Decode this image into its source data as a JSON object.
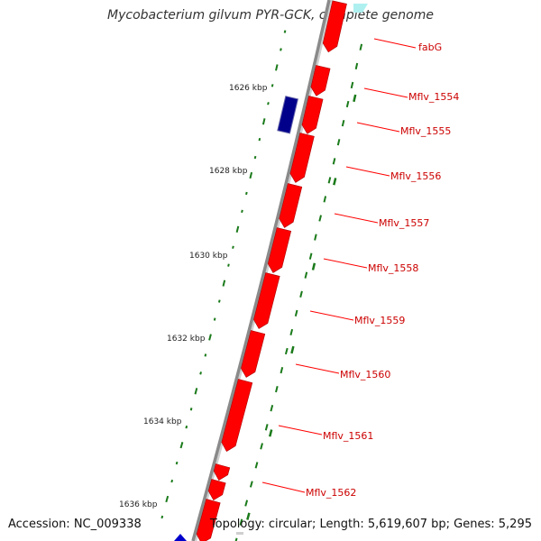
{
  "title": "Mycobacterium gilvum PYR-GCK, complete genome",
  "accession_text": "Accession: NC_009338",
  "topology_text": "Topology: circular; Length: 5,619,607 bp; Genes: 5,295",
  "colors": {
    "backbone": "#8a8a8a",
    "forward_gene": "#ff0000",
    "reverse_gene": "#0000cc",
    "highlight_gene": "#00008b",
    "rna_gene": "#aef0f0",
    "gc_tick": "#1a7a1a",
    "label_line": "#ff0000",
    "label_text": "#cc0000"
  },
  "ticks": [
    "1626 kbp",
    "1628 kbp",
    "1630 kbp",
    "1632 kbp",
    "1634 kbp",
    "1636 kbp"
  ],
  "gene_labels": [
    "fabG",
    "Mflv_1554",
    "Mflv_1555",
    "Mflv_1556",
    "Mflv_1557",
    "Mflv_1558",
    "Mflv_1559",
    "Mflv_1560",
    "Mflv_1561",
    "Mflv_1562"
  ]
}
